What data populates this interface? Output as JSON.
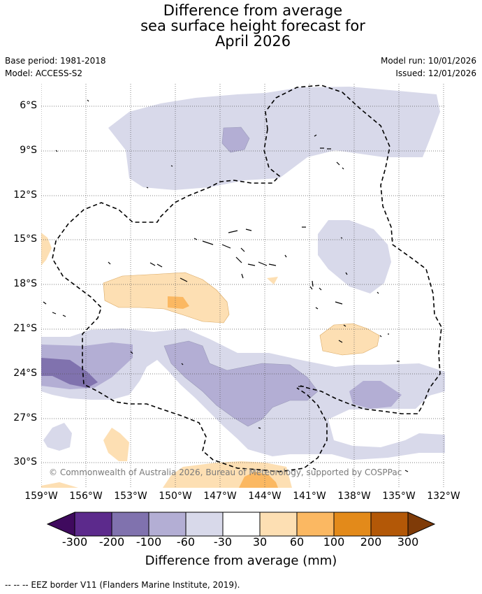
{
  "title_lines": [
    "Difference from average",
    "sea surface height forecast for",
    "April 2026"
  ],
  "meta": {
    "base_period": "Base period: 1981-2018",
    "model": "Model: ACCESS-S2",
    "model_run": "Model run: 10/01/2026",
    "issued": "Issued: 12/01/2026"
  },
  "copyright": "© Commonwealth of Australia 2026, Bureau of Meteorology, supported by COSPPac",
  "latitude_labels": [
    "6°S",
    "9°S",
    "12°S",
    "15°S",
    "18°S",
    "21°S",
    "24°S",
    "27°S",
    "30°S"
  ],
  "longitude_labels": [
    "159°W",
    "156°W",
    "153°W",
    "150°W",
    "147°W",
    "144°W",
    "141°W",
    "138°W",
    "135°W",
    "132°W"
  ],
  "colorbar": {
    "labels": [
      "-300",
      "-200",
      "-100",
      "-60",
      "-30",
      "30",
      "60",
      "100",
      "200",
      "300"
    ],
    "colors": [
      "#3f0a5e",
      "#5c2a8c",
      "#8072ae",
      "#b3aed4",
      "#d8d9ea",
      "#ffffff",
      "#fddfb3",
      "#fbb862",
      "#e38a1a",
      "#b35807",
      "#7f3b08"
    ],
    "title": "Difference from average (mm)"
  },
  "footer": "--  --  -- EEZ border V11 (Flanders Marine Institute, 2019)."
}
